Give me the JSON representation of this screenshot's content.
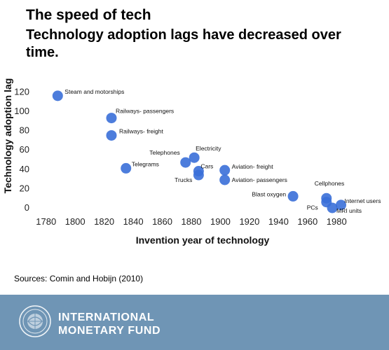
{
  "header": {
    "title": "The speed of tech",
    "subtitle": "Technology adoption lags have decreased over time."
  },
  "source": "Sources: Comin and Hobijn (2010)",
  "footer": {
    "org_line1": "INTERNATIONAL",
    "org_line2": "MONETARY FUND",
    "background": "#6f95b5",
    "seal_icon": "imf-seal-icon"
  },
  "chart_data": {
    "type": "scatter",
    "title": "",
    "xlabel": "Invention year of technology",
    "ylabel": "Technology adoption lag",
    "xlim": [
      1770,
      1990
    ],
    "ylim": [
      0,
      130
    ],
    "xticks": [
      1780,
      1800,
      1820,
      1840,
      1860,
      1880,
      1900,
      1920,
      1940,
      1960,
      1980
    ],
    "yticks": [
      0,
      20,
      40,
      60,
      80,
      100,
      120
    ],
    "grid": false,
    "marker_color": "#3a6fd8",
    "points": [
      {
        "label": "Steam and motorships",
        "x": 1788,
        "y": 116
      },
      {
        "label": "Railways- passengers",
        "x": 1825,
        "y": 93
      },
      {
        "label": "Railways-  freight",
        "x": 1825,
        "y": 75
      },
      {
        "label": "Telegrams",
        "x": 1835,
        "y": 41
      },
      {
        "label": "Telephones",
        "x": 1876,
        "y": 47
      },
      {
        "label": "Electricity",
        "x": 1882,
        "y": 52
      },
      {
        "label": "Cars",
        "x": 1885,
        "y": 38
      },
      {
        "label": "Trucks",
        "x": 1885,
        "y": 34
      },
      {
        "label": "Aviation- freight",
        "x": 1903,
        "y": 39
      },
      {
        "label": "Aviation- passengers",
        "x": 1903,
        "y": 29
      },
      {
        "label": "Blast oxygen",
        "x": 1950,
        "y": 12
      },
      {
        "label": "Cellphones",
        "x": 1973,
        "y": 10
      },
      {
        "label": "PCs",
        "x": 1973,
        "y": 6
      },
      {
        "label": "Internet users",
        "x": 1983,
        "y": 3
      },
      {
        "label": "MRI units",
        "x": 1977,
        "y": 0
      }
    ]
  }
}
